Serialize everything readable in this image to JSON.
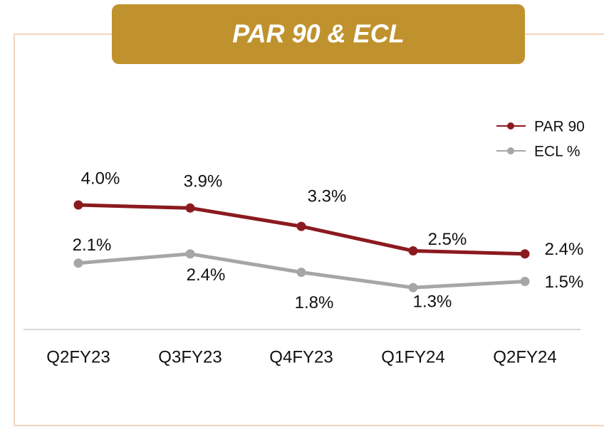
{
  "chart_data": {
    "type": "line",
    "title": "PAR 90 & ECL",
    "categories": [
      "Q2FY23",
      "Q3FY23",
      "Q4FY23",
      "Q1FY24",
      "Q2FY24"
    ],
    "series": [
      {
        "name": "PAR 90",
        "color": "#8b1a1f",
        "values": [
          4.0,
          3.9,
          3.3,
          2.5,
          2.4
        ],
        "value_labels": [
          "4.0%",
          "3.9%",
          "3.3%",
          "2.5%",
          "2.4%"
        ]
      },
      {
        "name": "ECL %",
        "color": "#a6a6a6",
        "values": [
          2.1,
          2.4,
          1.8,
          1.3,
          1.5
        ],
        "value_labels": [
          "2.1%",
          "2.4%",
          "1.8%",
          "1.3%",
          "1.5%"
        ]
      }
    ],
    "ylim": [
      0,
      5
    ],
    "legend": "top-right"
  }
}
